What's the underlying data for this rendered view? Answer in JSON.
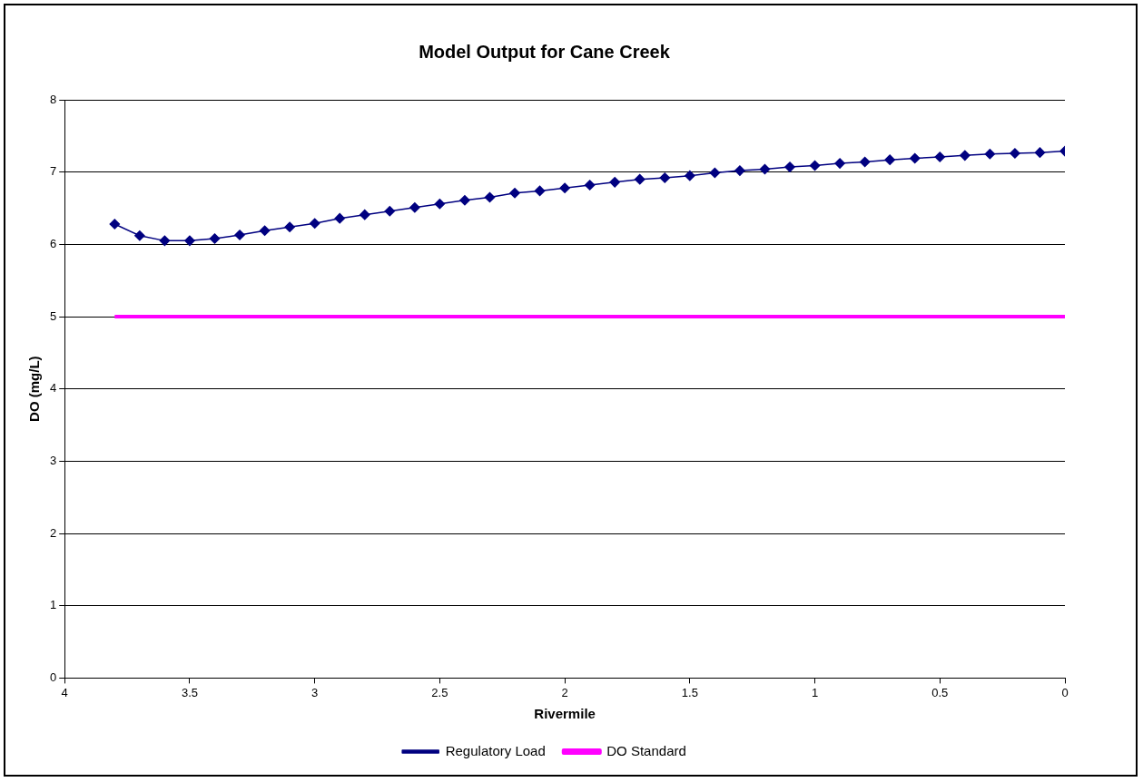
{
  "chart_data": {
    "type": "line",
    "title": "Model Output for Cane Creek",
    "xlabel": "Rivermile",
    "ylabel": "DO (mg/L)",
    "xlim": [
      4,
      0
    ],
    "xticks": [
      4,
      3.5,
      3,
      2.5,
      2,
      1.5,
      1,
      0.5,
      0
    ],
    "ylim": [
      0,
      8
    ],
    "yticks": [
      0,
      1,
      2,
      3,
      4,
      5,
      6,
      7,
      8
    ],
    "grid": "y",
    "legend": "bottom",
    "series": [
      {
        "name": "Regulatory Load",
        "color": "#000080",
        "marker": "diamond",
        "x": [
          3.8,
          3.7,
          3.6,
          3.5,
          3.4,
          3.3,
          3.2,
          3.1,
          3.0,
          2.9,
          2.8,
          2.7,
          2.6,
          2.5,
          2.4,
          2.3,
          2.2,
          2.1,
          2.0,
          1.9,
          1.8,
          1.7,
          1.6,
          1.5,
          1.4,
          1.3,
          1.2,
          1.1,
          1.0,
          0.9,
          0.8,
          0.7,
          0.6,
          0.5,
          0.4,
          0.3,
          0.2,
          0.1,
          0
        ],
        "values": [
          6.28,
          6.12,
          6.05,
          6.05,
          6.08,
          6.13,
          6.19,
          6.24,
          6.29,
          6.36,
          6.41,
          6.46,
          6.51,
          6.56,
          6.61,
          6.65,
          6.71,
          6.74,
          6.78,
          6.82,
          6.86,
          6.9,
          6.92,
          6.95,
          6.99,
          7.02,
          7.04,
          7.07,
          7.09,
          7.12,
          7.14,
          7.17,
          7.19,
          7.21,
          7.23,
          7.25,
          7.26,
          7.27,
          7.29
        ]
      },
      {
        "name": "DO Standard",
        "color": "#ff00ff",
        "marker": "none",
        "x": [
          3.8,
          0
        ],
        "values": [
          5,
          5
        ]
      }
    ]
  }
}
